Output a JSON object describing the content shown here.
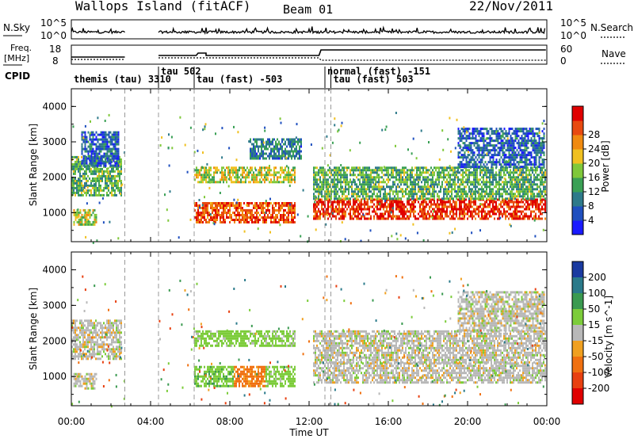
{
  "header": {
    "site": "Wallops Island (fitACF)",
    "beam": "Beam 01",
    "date": "22/Nov/2011"
  },
  "panels": {
    "nsky": {
      "label": "N.Sky",
      "ytick_top": "10^5",
      "ytick_bottom": "10^0",
      "right_label": "N.Search",
      "right_ytick_top": "10^5",
      "right_ytick_bottom": "10^0"
    },
    "freq": {
      "label_line1": "Freq.",
      "label_line2": "[MHz]",
      "ytick_top": "18",
      "ytick_bottom": "8",
      "right_label": "Nave",
      "right_ytick_top": "60",
      "right_ytick_bottom": "0"
    },
    "cpid": {
      "label": "CPID",
      "modes": [
        {
          "label": "themis (tau) 3310",
          "start_hour": 0.0
        },
        {
          "label": "tau 502",
          "start_hour": 4.4
        },
        {
          "label": "tau (fast) -503",
          "start_hour": 6.2
        },
        {
          "label": "normal (fast) -151",
          "start_hour": 12.8
        },
        {
          "label": "tau (fast) 503",
          "start_hour": 13.1
        }
      ]
    }
  },
  "chart_data": [
    {
      "type": "heatmap",
      "title": "Power",
      "xlabel": "",
      "ylabel": "Slant Range [km]",
      "xlim_hours": [
        0,
        24
      ],
      "ylim_km": [
        180,
        4500
      ],
      "yticks": [
        "1000",
        "2000",
        "3000",
        "4000"
      ],
      "colorbar": {
        "label": "Power [dB]",
        "ticks": [
          "4",
          "8",
          "12",
          "16",
          "20",
          "24",
          "28"
        ],
        "colors": [
          "#1a1aff",
          "#1f4fbf",
          "#2e7a8a",
          "#3aa055",
          "#7fc83a",
          "#f0c020",
          "#f08a10",
          "#e84a10",
          "#e00000"
        ]
      },
      "echo_bands": [
        {
          "start_hour": 0.0,
          "end_hour": 2.5,
          "range_low_km": 1500,
          "range_high_km": 2600,
          "power_db": 14
        },
        {
          "start_hour": 0.1,
          "end_hour": 1.3,
          "range_low_km": 650,
          "range_high_km": 1100,
          "power_db": 18
        },
        {
          "start_hour": 0.5,
          "end_hour": 2.4,
          "range_low_km": 2300,
          "range_high_km": 3300,
          "power_db": 8
        },
        {
          "start_hour": 6.2,
          "end_hour": 11.3,
          "range_low_km": 700,
          "range_high_km": 1300,
          "power_db": 26
        },
        {
          "start_hour": 6.2,
          "end_hour": 11.3,
          "range_low_km": 1850,
          "range_high_km": 2300,
          "power_db": 18
        },
        {
          "start_hour": 9.0,
          "end_hour": 11.6,
          "range_low_km": 2500,
          "range_high_km": 3100,
          "power_db": 10
        },
        {
          "start_hour": 12.2,
          "end_hour": 23.9,
          "range_low_km": 800,
          "range_high_km": 1400,
          "power_db": 28
        },
        {
          "start_hour": 12.2,
          "end_hour": 23.9,
          "range_low_km": 1400,
          "range_high_km": 2300,
          "power_db": 14
        },
        {
          "start_hour": 19.5,
          "end_hour": 23.9,
          "range_low_km": 2300,
          "range_high_km": 3400,
          "power_db": 8
        }
      ]
    },
    {
      "type": "heatmap",
      "title": "Velocity",
      "xlabel": "Time UT",
      "ylabel": "Slant Range [km]",
      "xlim_hours": [
        0,
        24
      ],
      "xticks": [
        "00:00",
        "04:00",
        "08:00",
        "12:00",
        "16:00",
        "20:00",
        "00:00"
      ],
      "ylim_km": [
        180,
        4500
      ],
      "yticks": [
        "1000",
        "2000",
        "3000",
        "4000"
      ],
      "colorbar": {
        "label": "Velocity [m s^-1]",
        "ticks": [
          "200",
          "100",
          "50",
          "15",
          "-15",
          "-50",
          "-100",
          "-200"
        ],
        "colors": [
          "#1a3aa0",
          "#2a7a8a",
          "#3a9a50",
          "#7ccc3a",
          "#b8b8b8",
          "#f0a020",
          "#f07010",
          "#e84010",
          "#e00000"
        ]
      },
      "echo_bands": [
        {
          "start_hour": 0.0,
          "end_hour": 2.5,
          "range_low_km": 1500,
          "range_high_km": 2600,
          "velocity_ms": 0
        },
        {
          "start_hour": 0.1,
          "end_hour": 1.3,
          "range_low_km": 650,
          "range_high_km": 1100,
          "velocity_ms": 0
        },
        {
          "start_hour": 6.2,
          "end_hour": 8.2,
          "range_low_km": 700,
          "range_high_km": 1300,
          "velocity_ms": 40
        },
        {
          "start_hour": 8.2,
          "end_hour": 9.8,
          "range_low_km": 700,
          "range_high_km": 1300,
          "velocity_ms": -60
        },
        {
          "start_hour": 9.8,
          "end_hour": 11.3,
          "range_low_km": 700,
          "range_high_km": 1300,
          "velocity_ms": 30
        },
        {
          "start_hour": 6.2,
          "end_hour": 11.3,
          "range_low_km": 1850,
          "range_high_km": 2300,
          "velocity_ms": 30
        },
        {
          "start_hour": 12.2,
          "end_hour": 23.9,
          "range_low_km": 800,
          "range_high_km": 1400,
          "velocity_ms": 0
        },
        {
          "start_hour": 12.2,
          "end_hour": 23.9,
          "range_low_km": 1400,
          "range_high_km": 2300,
          "velocity_ms": 0
        },
        {
          "start_hour": 19.5,
          "end_hour": 23.9,
          "range_low_km": 2300,
          "range_high_km": 3400,
          "velocity_ms": 0
        }
      ]
    }
  ]
}
